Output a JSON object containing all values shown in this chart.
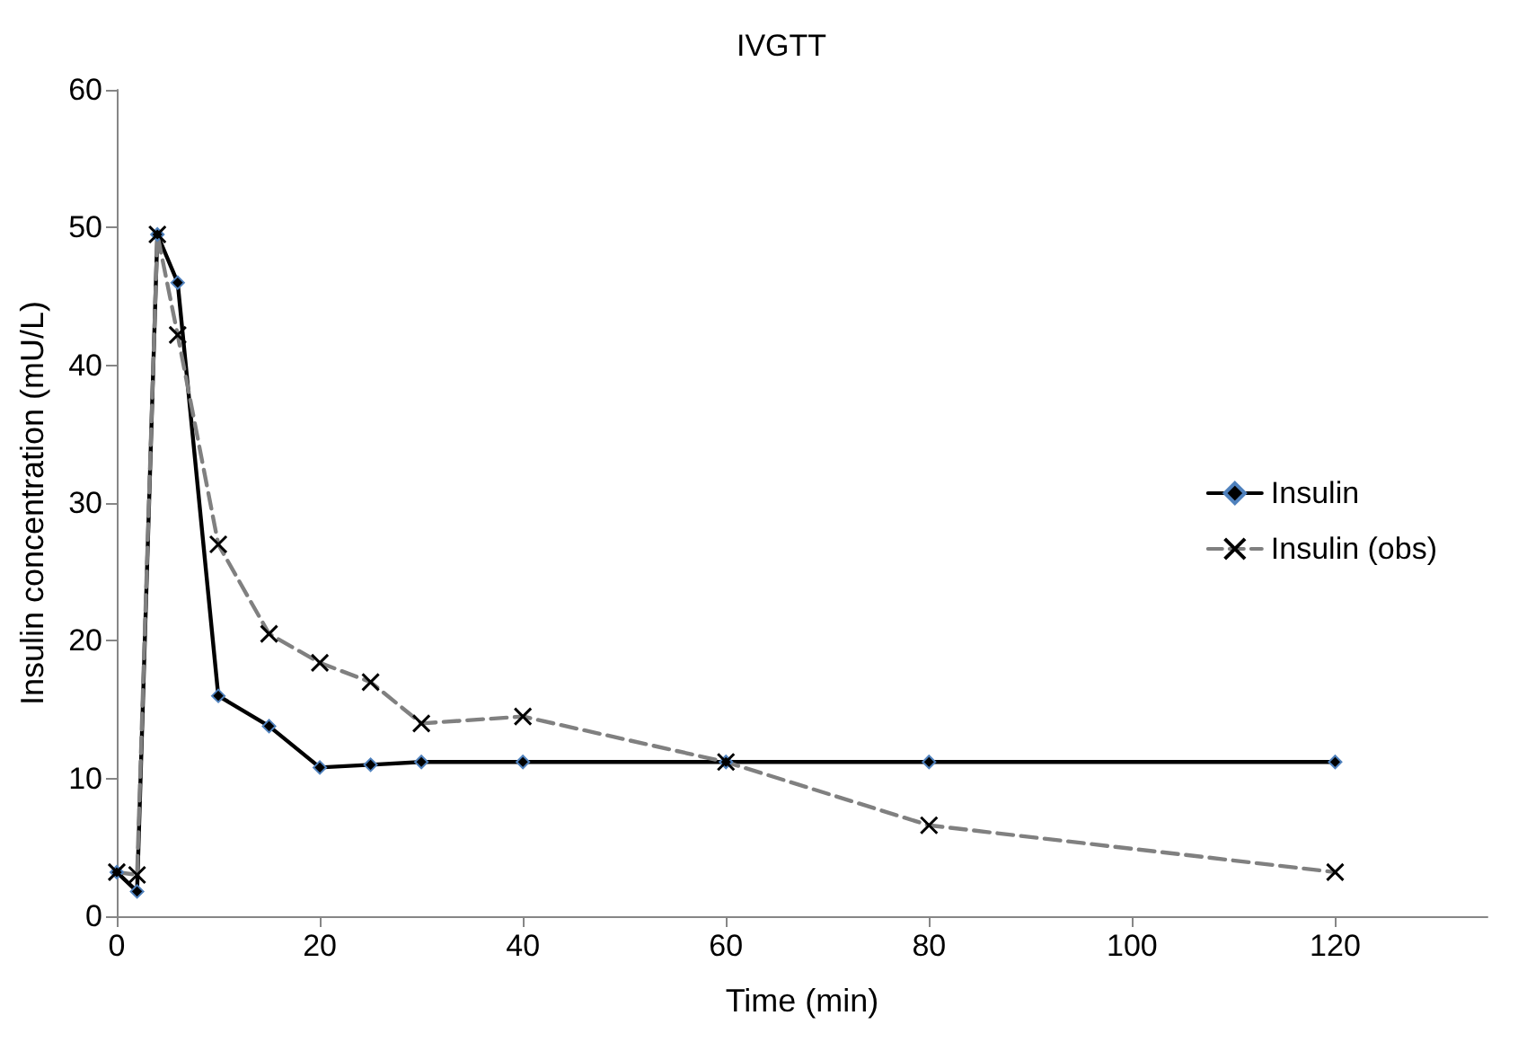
{
  "chart_data": {
    "type": "line",
    "title": "IVGTT",
    "xlabel": "Time (min)",
    "ylabel": "Insulin concentration (mU/L)",
    "xlim": [
      0,
      135
    ],
    "xticks": [
      0,
      20,
      40,
      60,
      80,
      100,
      120
    ],
    "ylim": [
      0,
      60
    ],
    "yticks": [
      0,
      10,
      20,
      30,
      40,
      50,
      60
    ],
    "x": [
      0,
      2,
      4,
      6,
      10,
      15,
      20,
      25,
      30,
      40,
      60,
      80,
      120
    ],
    "series": [
      {
        "name": "Insulin",
        "color": "#000000",
        "marker": "diamond",
        "line_style": "solid",
        "values": [
          3.2,
          1.8,
          49.5,
          46,
          16,
          13.8,
          10.8,
          11,
          11.2,
          11.2,
          11.2,
          11.2,
          11.2
        ]
      },
      {
        "name": "Insulin (obs)",
        "color": "#808080",
        "marker": "cross",
        "line_style": "dashed",
        "values": [
          3.2,
          3,
          49.5,
          42.2,
          27,
          20.5,
          18.4,
          17,
          14,
          14.5,
          11.2,
          6.6,
          3.2
        ]
      }
    ],
    "grid": false,
    "legend": "right"
  }
}
